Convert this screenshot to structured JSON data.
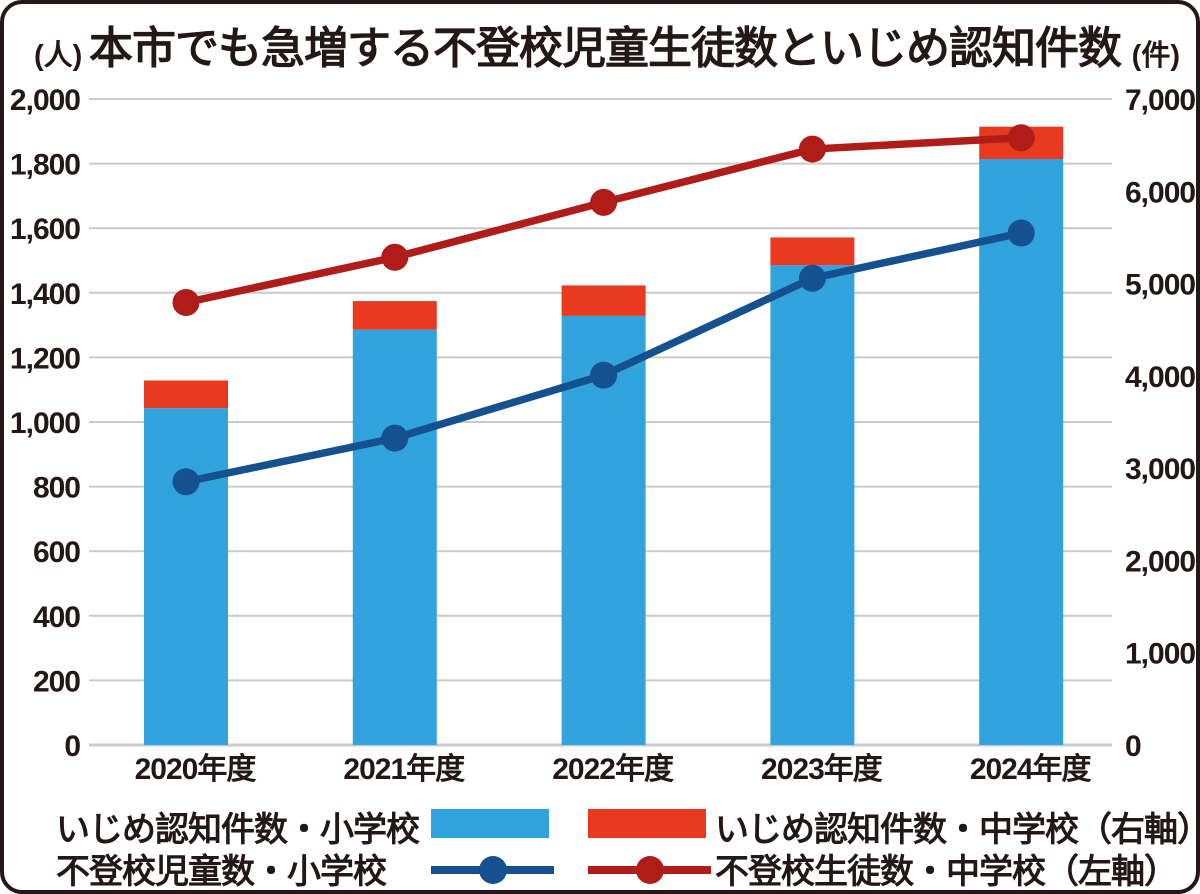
{
  "header": {
    "title": "本市でも急増する不登校児童生徒数といじめ認知件数",
    "left_unit": "(人)",
    "right_unit": "(件)"
  },
  "chart_data": {
    "type": "combo: stacked bar + line, dual axis",
    "title": "本市でも急増する不登校児童生徒数といじめ認知件数",
    "categories": [
      "2020年度",
      "2021年度",
      "2022年度",
      "2023年度",
      "2024年度"
    ],
    "left_axis": {
      "unit": "人",
      "min": 0,
      "max": 2000,
      "step": 200,
      "tick_labels": [
        "0",
        "200",
        "400",
        "600",
        "800",
        "1,000",
        "1,200",
        "1,400",
        "1,600",
        "1,800",
        "2,000"
      ]
    },
    "right_axis": {
      "unit": "件",
      "min": 0,
      "max": 7000,
      "step": 1000,
      "tick_labels": [
        "0",
        "1,000",
        "2,000",
        "3,000",
        "4,000",
        "5,000",
        "6,000",
        "7,000"
      ]
    },
    "bar_series": [
      {
        "name": "いじめ認知件数・小学校",
        "axis": "right",
        "color": "#31a3dd",
        "values": [
          3650,
          4500,
          4650,
          5200,
          6350
        ]
      },
      {
        "name": "いじめ認知件数・中学校（右軸）",
        "axis": "right",
        "color": "#e9391f",
        "values": [
          300,
          310,
          330,
          300,
          350
        ]
      }
    ],
    "line_series": [
      {
        "name": "不登校児童数・小学校",
        "axis": "left",
        "color": "#15508f",
        "values": [
          815,
          950,
          1145,
          1445,
          1585
        ]
      },
      {
        "name": "不登校生徒数・中学校（左軸）",
        "axis": "left",
        "color": "#b01c17",
        "values": [
          1370,
          1510,
          1680,
          1845,
          1880
        ]
      }
    ],
    "grid": {
      "horizontal": true,
      "aligned_to": "left_axis",
      "color": "#c9caca"
    },
    "legend_position": "bottom"
  },
  "legend": {
    "bar_elementary": "いじめ認知件数・小学校",
    "bar_junior": "いじめ認知件数・中学校（右軸）",
    "line_elementary": "不登校児童数・小学校",
    "line_junior": "不登校生徒数・中学校（左軸）"
  }
}
